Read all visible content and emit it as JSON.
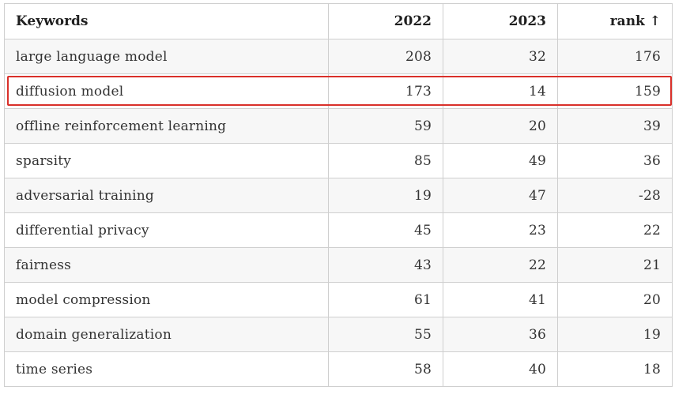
{
  "table": {
    "headers": {
      "keywords": "Keywords",
      "y2022": "2022",
      "y2023": "2023",
      "rank": "rank ↑"
    },
    "rows": [
      {
        "keyword": "large language model",
        "y2022": "208",
        "y2023": "32",
        "rank": "176"
      },
      {
        "keyword": "diffusion model",
        "y2022": "173",
        "y2023": "14",
        "rank": "159"
      },
      {
        "keyword": "offline reinforcement learning",
        "y2022": "59",
        "y2023": "20",
        "rank": "39"
      },
      {
        "keyword": "sparsity",
        "y2022": "85",
        "y2023": "49",
        "rank": "36"
      },
      {
        "keyword": "adversarial training",
        "y2022": "19",
        "y2023": "47",
        "rank": "-28"
      },
      {
        "keyword": "differential privacy",
        "y2022": "45",
        "y2023": "23",
        "rank": "22"
      },
      {
        "keyword": "fairness",
        "y2022": "43",
        "y2023": "22",
        "rank": "21"
      },
      {
        "keyword": "model compression",
        "y2022": "61",
        "y2023": "41",
        "rank": "20"
      },
      {
        "keyword": "domain generalization",
        "y2022": "55",
        "y2023": "36",
        "rank": "19"
      },
      {
        "keyword": "time series",
        "y2022": "58",
        "y2023": "40",
        "rank": "18"
      }
    ],
    "highlighted_row": 1,
    "highlight_color": "#d9302a"
  }
}
